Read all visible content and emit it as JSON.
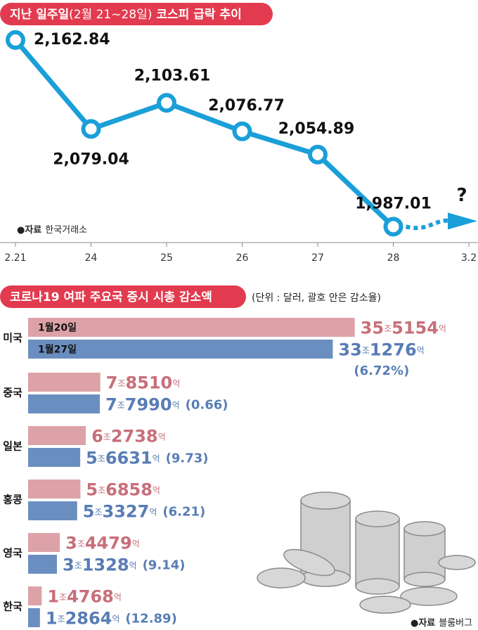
{
  "chart_data": [
    {
      "type": "line",
      "title": [
        "지난 일주일",
        "(2월 21~28일)",
        "코스피 급락 추이"
      ],
      "categories": [
        "2.21",
        "24",
        "25",
        "26",
        "27",
        "28",
        "3.2"
      ],
      "values": [
        2162.84,
        2079.04,
        2103.61,
        2076.77,
        2054.89,
        1987.01,
        null
      ],
      "value_labels": [
        "2,162.84",
        "2,079.04",
        "2,103.61",
        "2,076.77",
        "2,054.89",
        "1,987.01",
        null
      ],
      "color": "#1a9fd8",
      "ylim": [
        1972,
        2174
      ],
      "annotation": "?",
      "source": {
        "label": "자료",
        "text": "한국거래소"
      }
    },
    {
      "type": "bar",
      "orientation": "horizontal",
      "title": "코로나19 여파 주요국 증시 시총 감소액",
      "subtitle": "(단위 : 달러, 괄호 안은 감소율)",
      "categories": [
        "미국",
        "중국",
        "일본",
        "홍콩",
        "영국",
        "한국"
      ],
      "series": [
        {
          "name": "1월20일",
          "color": "#dca2a7",
          "label_color": "#c86f7a",
          "values": [
            355154,
            78510,
            62738,
            56858,
            34479,
            14768
          ],
          "value_labels": [
            "35조5154억",
            "7조8510억",
            "6조2738억",
            "5조6858억",
            "3조4479억",
            "1조4768억"
          ]
        },
        {
          "name": "1월27일",
          "color": "#6b8ec0",
          "label_color": "#587db5",
          "values": [
            331276,
            77990,
            56631,
            53327,
            31328,
            12864
          ],
          "value_labels": [
            "33조1276억",
            "7조7990억",
            "5조6631억",
            "5조3327억",
            "3조1328억",
            "1조2864억"
          ]
        }
      ],
      "change": [
        6.72,
        0.66,
        9.73,
        6.21,
        9.14,
        12.89
      ],
      "change_labels": [
        "(6.72%)",
        "(0.66)",
        "(9.73)",
        "(6.21)",
        "(9.14)",
        "(12.89)"
      ],
      "xlim": [
        0,
        360000
      ],
      "source": {
        "label": "자료",
        "text": "블룸버그"
      }
    }
  ]
}
